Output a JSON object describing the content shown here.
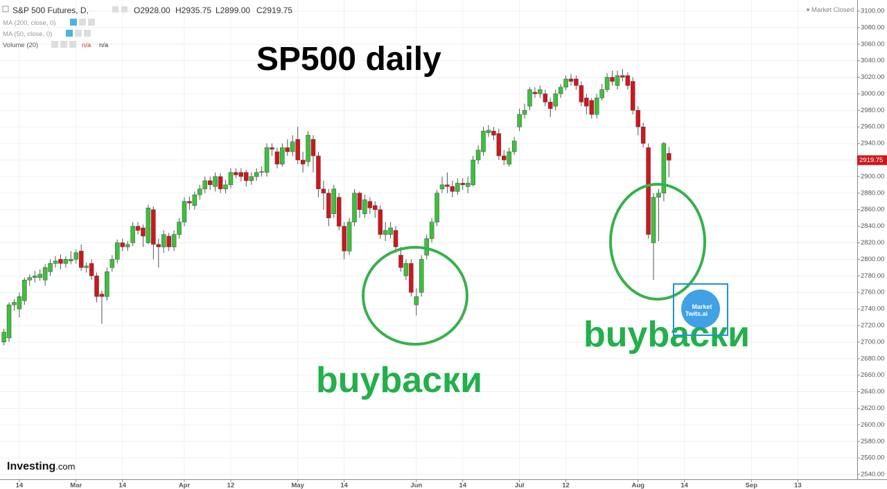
{
  "header": {
    "symbol": "S&P 500 Futures, D,",
    "open": "O2928.00",
    "high": "H2935.75",
    "low": "L2899.00",
    "close": "C2919.75",
    "status": "Market Closed"
  },
  "indicators": [
    {
      "name": "MA (200, close, 0)"
    },
    {
      "name": "MA (50, close, 0)"
    },
    {
      "name": "Volume (20)",
      "values": [
        "n/a",
        "n/a"
      ]
    }
  ],
  "logo": [
    "Investing",
    ".com"
  ],
  "watermark": [
    "Market",
    "Twits.ai"
  ],
  "chart_data": {
    "type": "candlestick",
    "title": "SP500 daily",
    "annotations": [
      "buybacки",
      "buybacки"
    ],
    "up_color": "#3cc13b",
    "down_color": "#d0161c",
    "grid": true,
    "categories": [
      "Feb 11",
      "Feb 12",
      "Feb 13",
      "Feb 14",
      "Feb 15",
      "Feb 18",
      "Feb 19",
      "Feb 20",
      "Feb 21",
      "Feb 22",
      "Feb 25",
      "Feb 26",
      "Feb 27",
      "Feb 28",
      "Mar 1",
      "Mar 4",
      "Mar 5",
      "Mar 6",
      "Mar 7",
      "Mar 8",
      "Mar 11",
      "Mar 12",
      "Mar 13",
      "Mar 14",
      "Mar 15",
      "Mar 18",
      "Mar 19",
      "Mar 20",
      "Mar 21",
      "Mar 22",
      "Mar 25",
      "Mar 26",
      "Mar 27",
      "Mar 28",
      "Mar 29",
      "Apr 1",
      "Apr 2",
      "Apr 3",
      "Apr 4",
      "Apr 5",
      "Apr 8",
      "Apr 9",
      "Apr 10",
      "Apr 11",
      "Apr 12",
      "Apr 15",
      "Apr 16",
      "Apr 17",
      "Apr 18",
      "Apr 19",
      "Apr 22",
      "Apr 23",
      "Apr 24",
      "Apr 25",
      "Apr 26",
      "Apr 29",
      "Apr 30",
      "May 1",
      "May 2",
      "May 3",
      "May 6",
      "May 7",
      "May 8",
      "May 9",
      "May 10",
      "May 13",
      "May 14",
      "May 15",
      "May 16",
      "May 17",
      "May 20",
      "May 21",
      "May 22",
      "May 23",
      "May 24",
      "May 27",
      "May 28",
      "May 29",
      "May 30",
      "May 31",
      "Jun 3",
      "Jun 4",
      "Jun 5",
      "Jun 6",
      "Jun 7",
      "Jun 10",
      "Jun 11",
      "Jun 12",
      "Jun 13",
      "Jun 14",
      "Jun 17",
      "Jun 18",
      "Jun 19",
      "Jun 20",
      "Jun 21",
      "Jun 24",
      "Jun 25",
      "Jun 26",
      "Jun 27",
      "Jun 28",
      "Jul 1",
      "Jul 2",
      "Jul 3",
      "Jul 4",
      "Jul 5",
      "Jul 8",
      "Jul 9",
      "Jul 10",
      "Jul 11",
      "Jul 12",
      "Jul 15",
      "Jul 16",
      "Jul 17",
      "Jul 18",
      "Jul 19",
      "Jul 22",
      "Jul 23",
      "Jul 24",
      "Jul 25",
      "Jul 26",
      "Jul 29",
      "Jul 30",
      "Jul 31",
      "Aug 1",
      "Aug 2",
      "Aug 5",
      "Aug 6",
      "Aug 7",
      "Aug 8",
      "Aug 9",
      "Aug 12",
      "Aug 13",
      "Aug 14",
      "Aug 15",
      "Aug 16",
      "Aug 19",
      "Aug 20",
      "Aug 21",
      "Aug 22",
      "Aug 23",
      "Aug 26",
      "Aug 27",
      "Aug 28",
      "Aug 29",
      "Aug 30",
      "Sep 2",
      "Sep 3",
      "Sep 4",
      "Sep 5",
      "Sep 6",
      "Sep 9",
      "Sep 10",
      "Sep 11",
      "Sep 12",
      "Sep 13"
    ],
    "open": [
      2700,
      2705,
      2745,
      2740,
      2750,
      2775,
      2778,
      2778,
      2775,
      2785,
      2795,
      2800,
      2795,
      2798,
      2800,
      2810,
      2790,
      2795,
      2780,
      2758,
      2755,
      2790,
      2800,
      2820,
      2815,
      2820,
      2840,
      2838,
      2820,
      2860,
      2818,
      2815,
      2828,
      2815,
      2830,
      2845,
      2870,
      2865,
      2878,
      2885,
      2895,
      2888,
      2900,
      2885,
      2890,
      2905,
      2905,
      2905,
      2895,
      2900,
      2905,
      2905,
      2935,
      2930,
      2915,
      2935,
      2930,
      2945,
      2920,
      2918,
      2945,
      2925,
      2885,
      2880,
      2855,
      2875,
      2840,
      2810,
      2845,
      2880,
      2855,
      2870,
      2865,
      2860,
      2830,
      2830,
      2835,
      2805,
      2780,
      2795,
      2745,
      2760,
      2805,
      2825,
      2845,
      2885,
      2890,
      2888,
      2882,
      2892,
      2888,
      2890,
      2920,
      2930,
      2953,
      2955,
      2952,
      2925,
      2915,
      2930,
      2960,
      2975,
      2985,
      3002,
      3000,
      3000,
      2990,
      2985,
      3000,
      3008,
      3018,
      3018,
      3010,
      2995,
      2992,
      2975,
      2995,
      3005,
      3020,
      3010,
      3022,
      3022,
      3015,
      2980,
      2960,
      2935,
      2820,
      2875,
      2880,
      2928,
      null,
      null,
      null,
      null,
      null,
      null,
      null,
      null,
      null,
      null,
      null,
      null,
      null,
      null,
      null,
      null,
      null,
      null,
      null,
      null,
      null,
      null,
      null,
      null,
      null
    ],
    "high": [
      2716,
      2748,
      2752,
      2760,
      2778,
      2782,
      2786,
      2788,
      2794,
      2800,
      2804,
      2806,
      2804,
      2810,
      2812,
      2818,
      2796,
      2800,
      2784,
      2762,
      2790,
      2805,
      2824,
      2825,
      2822,
      2845,
      2845,
      2842,
      2866,
      2864,
      2825,
      2835,
      2832,
      2835,
      2850,
      2875,
      2876,
      2882,
      2890,
      2900,
      2900,
      2905,
      2904,
      2896,
      2910,
      2910,
      2910,
      2908,
      2905,
      2910,
      2912,
      2940,
      2940,
      2935,
      2940,
      2945,
      2950,
      2960,
      2930,
      2955,
      2950,
      2930,
      2895,
      2885,
      2890,
      2880,
      2845,
      2850,
      2885,
      2882,
      2878,
      2875,
      2870,
      2865,
      2845,
      2845,
      2840,
      2815,
      2800,
      2800,
      2765,
      2805,
      2830,
      2850,
      2884,
      2900,
      2905,
      2895,
      2898,
      2898,
      2900,
      2925,
      2938,
      2960,
      2962,
      2960,
      2958,
      2932,
      2935,
      2948,
      2982,
      2988,
      3008,
      3008,
      3010,
      3005,
      2995,
      3005,
      3012,
      3022,
      3024,
      3022,
      3015,
      3000,
      2995,
      3000,
      3012,
      3025,
      3028,
      3028,
      3030,
      3026,
      3020,
      2985,
      2965,
      2940,
      2880,
      2885,
      2942,
      2935.75,
      null,
      null,
      null,
      null,
      null,
      null,
      null,
      null,
      null,
      null,
      null,
      null,
      null,
      null,
      null,
      null,
      null,
      null,
      null,
      null,
      null,
      null,
      null,
      null,
      null
    ],
    "low": [
      2696,
      2700,
      2738,
      2730,
      2745,
      2768,
      2772,
      2774,
      2768,
      2780,
      2790,
      2788,
      2790,
      2794,
      2795,
      2786,
      2784,
      2775,
      2748,
      2722,
      2750,
      2785,
      2795,
      2810,
      2810,
      2816,
      2830,
      2815,
      2818,
      2800,
      2790,
      2808,
      2810,
      2810,
      2825,
      2840,
      2860,
      2860,
      2872,
      2880,
      2884,
      2882,
      2880,
      2880,
      2886,
      2898,
      2894,
      2888,
      2890,
      2895,
      2900,
      2900,
      2925,
      2910,
      2912,
      2925,
      2925,
      2915,
      2905,
      2912,
      2905,
      2875,
      2860,
      2840,
      2850,
      2835,
      2800,
      2805,
      2840,
      2850,
      2850,
      2855,
      2850,
      2825,
      2822,
      2825,
      2808,
      2785,
      2775,
      2755,
      2732,
      2755,
      2800,
      2820,
      2840,
      2880,
      2880,
      2875,
      2878,
      2884,
      2880,
      2888,
      2915,
      2925,
      2948,
      2944,
      2920,
      2914,
      2912,
      2926,
      2955,
      2970,
      2980,
      2995,
      2995,
      2985,
      2972,
      2980,
      2995,
      3004,
      3010,
      3005,
      2985,
      2975,
      2970,
      2970,
      2992,
      3002,
      3010,
      3005,
      3015,
      3005,
      2975,
      2950,
      2935,
      2825,
      2775,
      2822,
      2870,
      2899,
      null,
      null,
      null,
      null,
      null,
      null,
      null,
      null,
      null,
      null,
      null,
      null,
      null,
      null,
      null,
      null,
      null,
      null,
      null,
      null,
      null,
      null,
      null,
      null,
      null
    ],
    "close": [
      2712,
      2745,
      2748,
      2755,
      2775,
      2778,
      2780,
      2782,
      2790,
      2795,
      2798,
      2795,
      2800,
      2800,
      2808,
      2790,
      2792,
      2780,
      2755,
      2755,
      2785,
      2800,
      2820,
      2815,
      2818,
      2840,
      2835,
      2828,
      2862,
      2818,
      2815,
      2830,
      2815,
      2830,
      2845,
      2870,
      2868,
      2878,
      2885,
      2895,
      2890,
      2900,
      2885,
      2890,
      2905,
      2902,
      2900,
      2895,
      2900,
      2905,
      2906,
      2935,
      2933,
      2915,
      2935,
      2930,
      2942,
      2920,
      2915,
      2950,
      2925,
      2885,
      2880,
      2850,
      2885,
      2840,
      2810,
      2845,
      2880,
      2860,
      2872,
      2862,
      2860,
      2830,
      2835,
      2838,
      2815,
      2790,
      2795,
      2760,
      2755,
      2800,
      2825,
      2845,
      2880,
      2890,
      2888,
      2882,
      2892,
      2890,
      2892,
      2920,
      2932,
      2955,
      2956,
      2950,
      2925,
      2920,
      2930,
      2943,
      2975,
      2980,
      3005,
      3000,
      3005,
      2990,
      2982,
      3000,
      3008,
      3018,
      3015,
      3010,
      2990,
      2985,
      2975,
      2995,
      3005,
      3020,
      3015,
      3022,
      3020,
      3010,
      2980,
      2960,
      2940,
      2830,
      2875,
      2880,
      2940,
      2919.75,
      null,
      null,
      null,
      null,
      null,
      null,
      null,
      null,
      null,
      null,
      null,
      null,
      null,
      null,
      null,
      null,
      null,
      null,
      null,
      null,
      null,
      null,
      null,
      null,
      null
    ],
    "ylim": [
      2535,
      3110
    ],
    "yticks": [
      {
        "value": 2540,
        "label": "2540.00"
      },
      {
        "value": 2560,
        "label": "2560.00"
      },
      {
        "value": 2580,
        "label": "2580.00"
      },
      {
        "value": 2600,
        "label": "2600.00"
      },
      {
        "value": 2620,
        "label": "2620.00"
      },
      {
        "value": 2640,
        "label": "2640.00"
      },
      {
        "value": 2660,
        "label": "2660.00"
      },
      {
        "value": 2680,
        "label": "2680.00"
      },
      {
        "value": 2700,
        "label": "2700.00"
      },
      {
        "value": 2720,
        "label": "2720.00"
      },
      {
        "value": 2740,
        "label": "2740.00"
      },
      {
        "value": 2760,
        "label": "2760.00"
      },
      {
        "value": 2780,
        "label": "2780.00"
      },
      {
        "value": 2800,
        "label": "2800.00"
      },
      {
        "value": 2820,
        "label": "2820.00"
      },
      {
        "value": 2840,
        "label": "2840.00"
      },
      {
        "value": 2860,
        "label": "2860.00"
      },
      {
        "value": 2880,
        "label": "2880.00"
      },
      {
        "value": 2900,
        "label": "2900.00"
      },
      {
        "value": 2920,
        "label": "2920.00"
      },
      {
        "value": 2940,
        "label": "2940.00"
      },
      {
        "value": 2960,
        "label": "2960.00"
      },
      {
        "value": 2980,
        "label": "2980.00"
      },
      {
        "value": 3000,
        "label": "3000.00"
      },
      {
        "value": 3020,
        "label": "3020.00"
      },
      {
        "value": 3040,
        "label": "3040.00"
      },
      {
        "value": 3060,
        "label": "3060.00"
      },
      {
        "value": 3080,
        "label": "3080.00"
      },
      {
        "value": 3100,
        "label": "3100.00"
      }
    ],
    "xticks": [
      {
        "value": "Feb 14",
        "label": "14"
      },
      {
        "value": "Mar 1",
        "label": "Mar"
      },
      {
        "value": "Mar 14",
        "label": "14"
      },
      {
        "value": "Apr 1",
        "label": "Apr"
      },
      {
        "value": "Apr 12",
        "label": "12"
      },
      {
        "value": "May 1",
        "label": "May"
      },
      {
        "value": "May 14",
        "label": "14"
      },
      {
        "value": "Jun 3",
        "label": "Jun"
      },
      {
        "value": "Jun 14",
        "label": "14"
      },
      {
        "value": "Jul 1",
        "label": "Jul"
      },
      {
        "value": "Jul 12",
        "label": "12"
      },
      {
        "value": "Aug 1",
        "label": "Aug"
      },
      {
        "value": "Aug 14",
        "label": "14"
      },
      {
        "value": "Sep 2",
        "label": "Sep"
      },
      {
        "value": "Sep 13",
        "label": "13"
      }
    ]
  }
}
